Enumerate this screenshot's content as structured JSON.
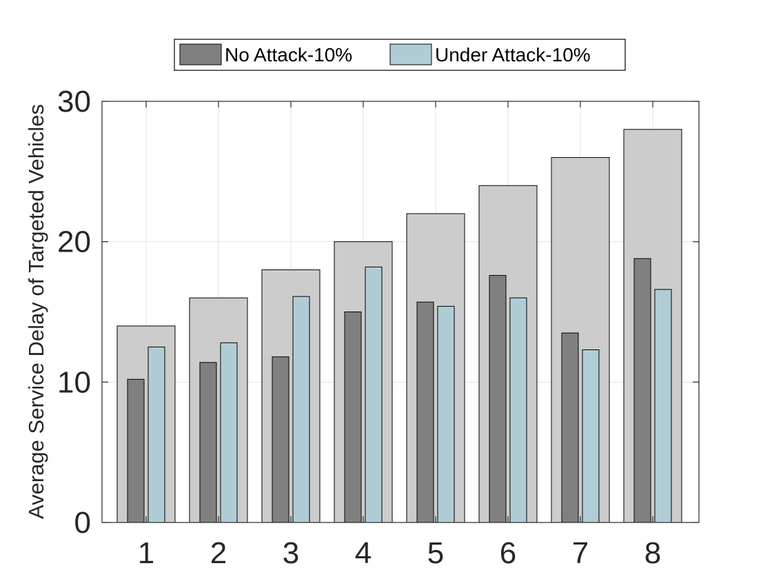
{
  "chart_data": {
    "type": "bar",
    "categories": [
      "1",
      "2",
      "3",
      "4",
      "5",
      "6",
      "7",
      "8"
    ],
    "background_values": [
      14,
      16,
      18,
      20,
      22,
      24,
      26,
      28
    ],
    "series": [
      {
        "name": "No Attack-10%",
        "values": [
          10.2,
          11.4,
          11.8,
          15.0,
          15.7,
          17.6,
          13.5,
          18.8
        ]
      },
      {
        "name": "Under Attack-10%",
        "values": [
          12.5,
          12.8,
          16.1,
          18.2,
          15.4,
          16.0,
          12.3,
          16.6
        ]
      }
    ],
    "title": "",
    "xlabel": "",
    "ylabel": "Average Service Delay of Targeted Vehicles",
    "ylim": [
      0,
      30
    ],
    "yticks": [
      "0",
      "10",
      "20",
      "30"
    ],
    "grid": true,
    "legend_position": "top",
    "colors": {
      "background_bar": "#cccccc",
      "no_attack": "#808080",
      "under_attack": "#b0cdd5",
      "grid": "#e2e2e2",
      "axis": "#262626"
    }
  }
}
